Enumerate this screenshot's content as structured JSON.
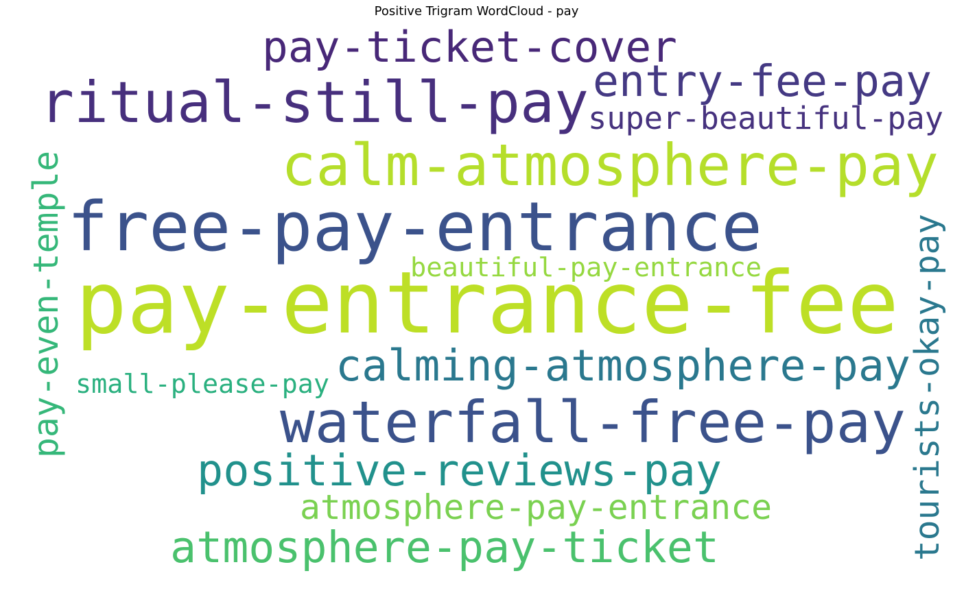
{
  "chart_data": {
    "type": "wordcloud",
    "title": "Positive Trigram WordCloud - pay",
    "words": [
      {
        "text": "pay-entrance-fee",
        "color": "#bddf26"
      },
      {
        "text": "free-pay-entrance",
        "color": "#3b528b"
      },
      {
        "text": "waterfall-free-pay",
        "color": "#3b528b"
      },
      {
        "text": "ritual-still-pay",
        "color": "#472f7d"
      },
      {
        "text": "calm-atmosphere-pay",
        "color": "#b5de2b"
      },
      {
        "text": "pay-ticket-cover",
        "color": "#482878"
      },
      {
        "text": "positive-reviews-pay",
        "color": "#21918c"
      },
      {
        "text": "calming-atmosphere-pay",
        "color": "#2a788e"
      },
      {
        "text": "atmosphere-pay-ticket",
        "color": "#4ac16d"
      },
      {
        "text": "entry-fee-pay",
        "color": "#443983"
      },
      {
        "text": "super-beautiful-pay",
        "color": "#46327e"
      },
      {
        "text": "atmosphere-pay-entrance",
        "color": "#7ad151"
      },
      {
        "text": "beautiful-pay-entrance",
        "color": "#95d840"
      },
      {
        "text": "small-please-pay",
        "color": "#2ab07f"
      },
      {
        "text": "pay-even-temple",
        "color": "#35b779"
      },
      {
        "text": "tourists-okay-pay",
        "color": "#2a788e"
      }
    ]
  }
}
